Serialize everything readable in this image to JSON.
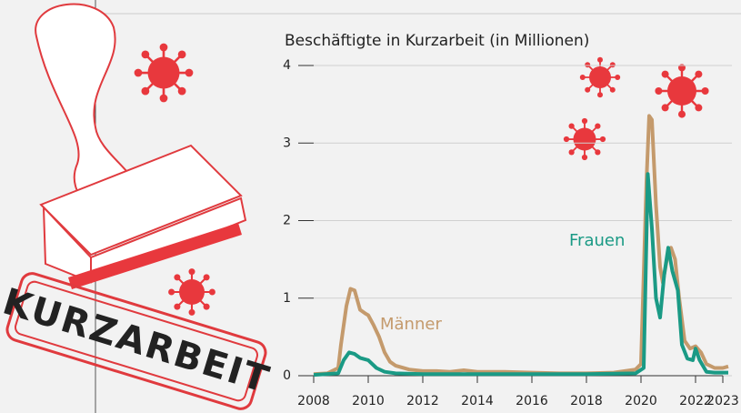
{
  "chart_data": {
    "type": "line",
    "title": "Beschäftigte in Kurzarbeit (in Millionen)",
    "xlim": [
      2008,
      2023
    ],
    "xticks": [
      2008,
      2010,
      2012,
      2014,
      2016,
      2018,
      2020,
      2022,
      2023
    ],
    "ylim": [
      0,
      4
    ],
    "yticks": [
      0,
      1,
      2,
      3,
      4
    ],
    "grid": true,
    "series": [
      {
        "name": "Männer",
        "color": "#c49a6c",
        "x": [
          2008.0,
          2008.5,
          2008.9,
          2009.0,
          2009.2,
          2009.35,
          2009.5,
          2009.7,
          2009.9,
          2010.0,
          2010.2,
          2010.4,
          2010.6,
          2010.8,
          2011.0,
          2011.5,
          2012.0,
          2012.5,
          2013.0,
          2013.5,
          2014.0,
          2015.0,
          2016.0,
          2017.0,
          2018.0,
          2019.0,
          2019.8,
          2020.0,
          2020.2,
          2020.3,
          2020.4,
          2020.55,
          2020.7,
          2020.8,
          2020.95,
          2021.1,
          2021.25,
          2021.4,
          2021.6,
          2021.8,
          2022.0,
          2022.2,
          2022.4,
          2022.7,
          2023.0,
          2023.2
        ],
        "values": [
          0.02,
          0.03,
          0.1,
          0.4,
          0.9,
          1.12,
          1.1,
          0.85,
          0.8,
          0.78,
          0.65,
          0.5,
          0.3,
          0.18,
          0.13,
          0.08,
          0.06,
          0.06,
          0.05,
          0.07,
          0.05,
          0.05,
          0.04,
          0.03,
          0.03,
          0.04,
          0.08,
          0.15,
          2.5,
          3.35,
          3.3,
          2.2,
          1.4,
          1.2,
          1.5,
          1.65,
          1.5,
          1.0,
          0.45,
          0.35,
          0.38,
          0.3,
          0.15,
          0.1,
          0.1,
          0.12
        ]
      },
      {
        "name": "Frauen",
        "color": "#1a9a85",
        "x": [
          2008.0,
          2008.9,
          2009.1,
          2009.3,
          2009.5,
          2009.7,
          2010.0,
          2010.3,
          2010.6,
          2011.0,
          2012.0,
          2014.0,
          2016.0,
          2018.0,
          2019.8,
          2020.1,
          2020.25,
          2020.4,
          2020.55,
          2020.7,
          2020.85,
          2021.0,
          2021.15,
          2021.35,
          2021.5,
          2021.7,
          2021.9,
          2022.0,
          2022.15,
          2022.4,
          2022.7,
          2023.2
        ],
        "values": [
          0.01,
          0.03,
          0.2,
          0.3,
          0.28,
          0.23,
          0.2,
          0.1,
          0.05,
          0.03,
          0.02,
          0.02,
          0.02,
          0.02,
          0.03,
          0.1,
          2.6,
          1.9,
          1.0,
          0.75,
          1.3,
          1.65,
          1.35,
          1.1,
          0.4,
          0.22,
          0.2,
          0.35,
          0.2,
          0.05,
          0.04,
          0.04
        ]
      }
    ]
  },
  "illustration": {
    "stamp_text": "KURZARBEIT"
  }
}
